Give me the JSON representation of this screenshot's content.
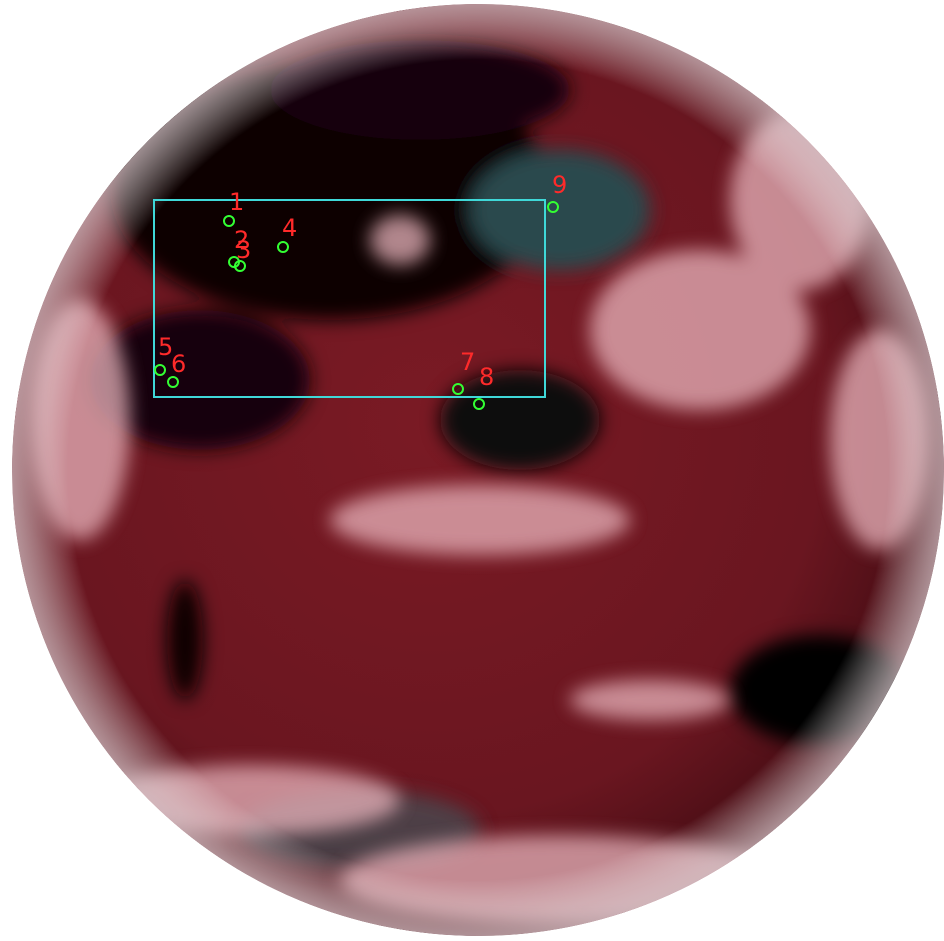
{
  "markers": [
    {
      "label": "1"
    },
    {
      "label": "2"
    },
    {
      "label": "3"
    },
    {
      "label": "4"
    },
    {
      "label": "5"
    },
    {
      "label": "6"
    },
    {
      "label": "7"
    },
    {
      "label": "8"
    },
    {
      "label": "9"
    }
  ]
}
